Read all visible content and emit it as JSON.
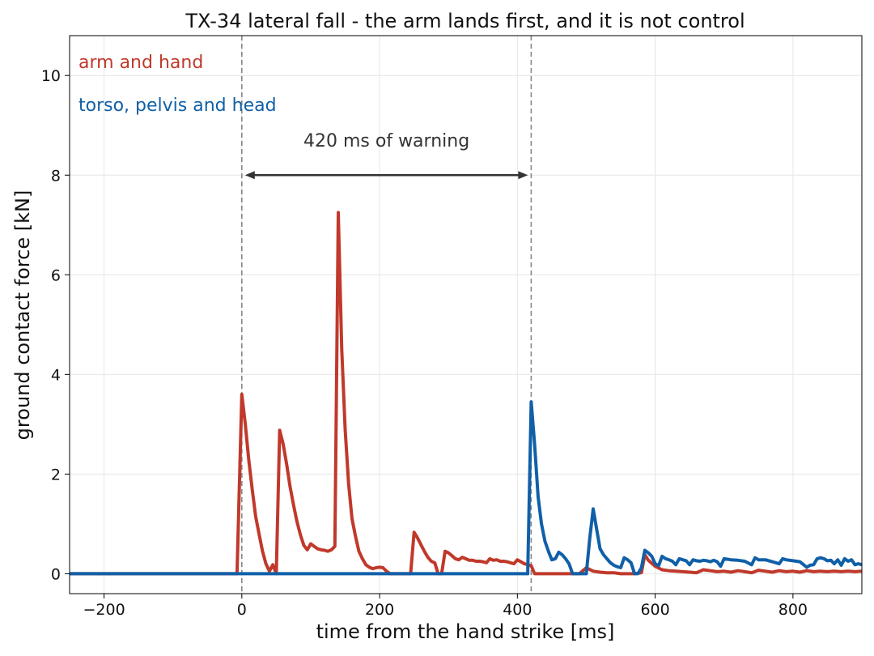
{
  "chart_data": {
    "type": "line",
    "title": "TX-34 lateral fall - the arm lands first, and it is not control",
    "xlabel": "time from the hand strike [ms]",
    "ylabel": "ground contact force [kN]",
    "xlim": [
      -250,
      900
    ],
    "ylim": [
      -0.4,
      10.8
    ],
    "xticks": [
      -200,
      0,
      200,
      400,
      600,
      800
    ],
    "yticks": [
      0,
      2,
      4,
      6,
      8,
      10
    ],
    "xtick_labels": [
      "−200",
      "0",
      "200",
      "400",
      "600",
      "800"
    ],
    "ytick_labels": [
      "0",
      "2",
      "4",
      "6",
      "8",
      "10"
    ],
    "grid": true,
    "legend_placement": "top-left",
    "series": [
      {
        "name": "arm and hand",
        "color": "#c0392b",
        "x": [
          -250,
          -7,
          0,
          5,
          10,
          15,
          20,
          25,
          30,
          35,
          40,
          45,
          50,
          55,
          60,
          65,
          70,
          75,
          80,
          85,
          90,
          95,
          100,
          105,
          110,
          115,
          120,
          125,
          130,
          135,
          140,
          145,
          150,
          155,
          160,
          165,
          170,
          175,
          180,
          185,
          190,
          195,
          200,
          205,
          210,
          215,
          220,
          225,
          230,
          235,
          240,
          245,
          250,
          255,
          260,
          265,
          270,
          275,
          280,
          285,
          290,
          295,
          300,
          305,
          310,
          315,
          320,
          325,
          330,
          335,
          340,
          345,
          350,
          355,
          360,
          365,
          370,
          375,
          380,
          385,
          390,
          395,
          400,
          405,
          410,
          415,
          420,
          425,
          430,
          440,
          450,
          460,
          470,
          480,
          490,
          500,
          510,
          520,
          530,
          540,
          550,
          560,
          570,
          580,
          585,
          590,
          600,
          610,
          620,
          630,
          640,
          650,
          660,
          670,
          680,
          690,
          700,
          710,
          720,
          730,
          740,
          750,
          760,
          770,
          780,
          790,
          800,
          810,
          820,
          830,
          840,
          850,
          860,
          870,
          880,
          890,
          900
        ],
        "values": [
          0,
          0,
          3.6,
          3.0,
          2.3,
          1.7,
          1.15,
          0.8,
          0.45,
          0.2,
          0.05,
          0.18,
          0.0,
          2.88,
          2.6,
          2.2,
          1.75,
          1.38,
          1.05,
          0.78,
          0.57,
          0.48,
          0.6,
          0.55,
          0.5,
          0.48,
          0.47,
          0.45,
          0.48,
          0.55,
          7.25,
          4.5,
          2.9,
          1.8,
          1.1,
          0.75,
          0.45,
          0.3,
          0.18,
          0.13,
          0.1,
          0.12,
          0.13,
          0.12,
          0.05,
          0.0,
          0.0,
          0.0,
          0.0,
          0.0,
          0.0,
          0.0,
          0.83,
          0.72,
          0.58,
          0.45,
          0.33,
          0.25,
          0.22,
          0.0,
          0.0,
          0.45,
          0.42,
          0.36,
          0.3,
          0.28,
          0.33,
          0.3,
          0.27,
          0.27,
          0.25,
          0.25,
          0.24,
          0.22,
          0.3,
          0.27,
          0.28,
          0.25,
          0.25,
          0.24,
          0.22,
          0.2,
          0.28,
          0.24,
          0.2,
          0.18,
          0.16,
          0.0,
          0.0,
          0.0,
          0.0,
          0.0,
          0.0,
          0.0,
          0.0,
          0.12,
          0.05,
          0.03,
          0.02,
          0.02,
          0.0,
          0.0,
          0.0,
          0.02,
          0.38,
          0.27,
          0.15,
          0.08,
          0.06,
          0.05,
          0.04,
          0.03,
          0.02,
          0.08,
          0.06,
          0.04,
          0.05,
          0.03,
          0.06,
          0.04,
          0.02,
          0.07,
          0.05,
          0.03,
          0.06,
          0.04,
          0.05,
          0.03,
          0.06,
          0.04,
          0.05,
          0.04,
          0.05,
          0.04,
          0.05,
          0.04,
          0.05
        ]
      },
      {
        "name": "torso, pelvis and head",
        "color": "#1060a8",
        "x": [
          -250,
          415,
          420,
          425,
          430,
          435,
          440,
          445,
          450,
          455,
          460,
          465,
          470,
          475,
          480,
          485,
          490,
          495,
          500,
          505,
          510,
          515,
          520,
          525,
          530,
          535,
          540,
          545,
          550,
          555,
          560,
          565,
          570,
          575,
          580,
          585,
          590,
          595,
          600,
          605,
          610,
          615,
          620,
          625,
          630,
          635,
          640,
          645,
          650,
          655,
          660,
          665,
          670,
          675,
          680,
          685,
          690,
          695,
          700,
          710,
          720,
          730,
          740,
          745,
          750,
          760,
          770,
          780,
          785,
          790,
          800,
          810,
          820,
          825,
          830,
          835,
          840,
          845,
          850,
          855,
          860,
          865,
          870,
          875,
          880,
          885,
          890,
          895,
          900
        ],
        "values": [
          0,
          0,
          3.45,
          2.6,
          1.55,
          1.0,
          0.65,
          0.45,
          0.28,
          0.3,
          0.43,
          0.38,
          0.3,
          0.2,
          0.0,
          0.0,
          0.0,
          0.0,
          0.0,
          0.7,
          1.3,
          0.9,
          0.5,
          0.38,
          0.3,
          0.22,
          0.17,
          0.14,
          0.12,
          0.32,
          0.28,
          0.22,
          0.0,
          0.0,
          0.12,
          0.47,
          0.42,
          0.35,
          0.2,
          0.16,
          0.35,
          0.3,
          0.28,
          0.25,
          0.18,
          0.3,
          0.28,
          0.26,
          0.18,
          0.28,
          0.26,
          0.25,
          0.27,
          0.26,
          0.24,
          0.27,
          0.24,
          0.15,
          0.3,
          0.28,
          0.27,
          0.25,
          0.18,
          0.32,
          0.28,
          0.28,
          0.24,
          0.2,
          0.3,
          0.28,
          0.26,
          0.24,
          0.13,
          0.17,
          0.18,
          0.3,
          0.32,
          0.3,
          0.26,
          0.27,
          0.2,
          0.28,
          0.17,
          0.3,
          0.25,
          0.28,
          0.18,
          0.2,
          0.18
        ]
      }
    ],
    "markers": [
      {
        "x": 0,
        "style": "dashed",
        "color": "#888888"
      },
      {
        "x": 420,
        "style": "dashed",
        "color": "#888888"
      }
    ],
    "annotations": [
      {
        "text": "420 ms of warning",
        "x": 210,
        "y": 8.7
      },
      {
        "type": "double-arrow",
        "x0": 0,
        "x1": 420,
        "y": 8.0
      }
    ]
  }
}
